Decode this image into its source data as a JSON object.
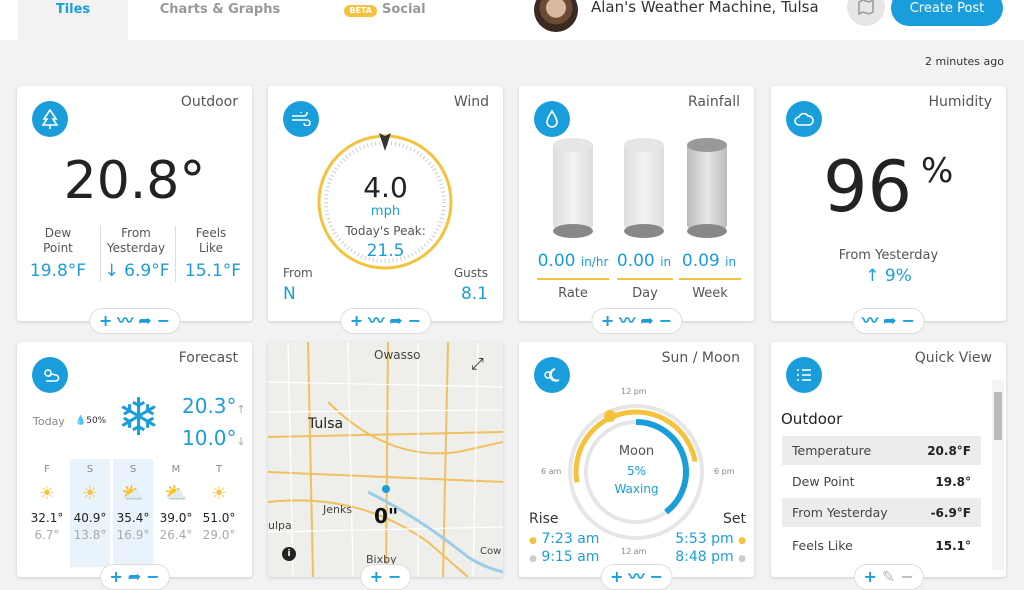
{
  "tabs": [
    "Tiles",
    "Charts & Graphs",
    "Social"
  ],
  "beta": "BETA",
  "station": "Alan's Weather Machine, Tulsa",
  "create_post": "Create Post",
  "updated": "2 minutes ago",
  "outdoor": {
    "title": "Outdoor",
    "temp": "20.8°",
    "dew_label": "Dew\nPoint",
    "dew": "19.8°F",
    "yest_label": "From\nYesterday",
    "yest": "↓ 6.9°F",
    "feels_label": "Feels\nLike",
    "feels": "15.1°F"
  },
  "wind": {
    "title": "Wind",
    "speed": "4.0",
    "unit": "mph",
    "peak_label": "Today's Peak:",
    "peak": "21.5",
    "from_label": "From",
    "from": "N",
    "gusts_label": "Gusts",
    "gusts": "8.1"
  },
  "rainfall": {
    "title": "Rainfall",
    "rate": "0.00",
    "rate_unit": "in/hr",
    "day": "0.00",
    "day_unit": "in",
    "week": "0.09",
    "week_unit": "in",
    "rate_label": "Rate",
    "day_label": "Day",
    "week_label": "Week"
  },
  "humidity": {
    "title": "Humidity",
    "value": "96",
    "pct": "%",
    "yest_label": "From Yesterday",
    "yest": "↑ 9%"
  },
  "forecast": {
    "title": "Forecast",
    "today": "Today",
    "precip": "50%",
    "hi": "20.3°",
    "lo": "10.0°",
    "hi_arrow": "↑",
    "lo_arrow": "↓",
    "days": [
      {
        "d": "F",
        "hi": "32.1°",
        "lo": "6.7°"
      },
      {
        "d": "S",
        "hi": "40.9°",
        "lo": "13.8°"
      },
      {
        "d": "S",
        "hi": "35.4°",
        "lo": "16.9°"
      },
      {
        "d": "M",
        "hi": "39.0°",
        "lo": "26.4°"
      },
      {
        "d": "T",
        "hi": "51.0°",
        "lo": "29.0°"
      }
    ]
  },
  "map": {
    "owasso": "Owasso",
    "tulsa": "Tulsa",
    "jenks": "Jenks",
    "bixby": "Bixby",
    "sapulpa": "ulpa",
    "cow": "Cow",
    "rain": "0\""
  },
  "sunmoon": {
    "title": "Sun / Moon",
    "noon": "12 pm",
    "midnight": "12 am",
    "six_am": "6 am",
    "six_pm": "6 pm",
    "moon": "Moon",
    "moon_pct": "5%",
    "moon_phase": "Waxing",
    "rise": "Rise",
    "set": "Set",
    "sunrise": "7:23 am",
    "moonrise": "9:15 am",
    "sunset": "5:53 pm",
    "moonset": "8:48 pm"
  },
  "quick": {
    "title": "Quick View",
    "section": "Outdoor",
    "rows": [
      {
        "k": "Temperature",
        "v": "20.8°F"
      },
      {
        "k": "Dew Point",
        "v": "19.8°"
      },
      {
        "k": "From Yesterday",
        "v": "-6.9°F"
      },
      {
        "k": "Feels Like",
        "v": "15.1°"
      }
    ]
  },
  "colors": {
    "accent": "#1a9edb",
    "sun": "#f6c23e"
  }
}
